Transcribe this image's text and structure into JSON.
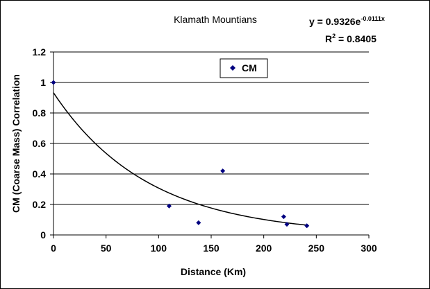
{
  "chart_data": {
    "type": "scatter",
    "title": "Klamath Mountians",
    "xlabel": "Distance (Km)",
    "ylabel": "CM (Coarse Mass) Correlation",
    "xlim": [
      0,
      300
    ],
    "ylim": [
      0,
      1.2
    ],
    "x_ticks": [
      0,
      50,
      100,
      150,
      200,
      250,
      300
    ],
    "y_ticks": [
      0,
      0.2,
      0.4,
      0.6,
      0.8,
      1,
      1.2
    ],
    "x_tick_labels": [
      "0",
      "50",
      "100",
      "150",
      "200",
      "250",
      "300"
    ],
    "y_tick_labels": [
      "0",
      "0.2",
      "0.4",
      "0.6",
      "0.8",
      "1",
      "1.2"
    ],
    "grid": "horizontal major gridlines",
    "legend_position": "top-center",
    "series": [
      {
        "name": "CM",
        "marker": "diamond",
        "color": "#000080",
        "x": [
          0,
          110,
          138,
          161,
          219,
          222,
          241
        ],
        "y": [
          1.0,
          0.19,
          0.08,
          0.42,
          0.12,
          0.07,
          0.06
        ]
      }
    ],
    "trendline": {
      "type": "exponential",
      "a": 0.9326,
      "b": -0.0111,
      "x_range": [
        0,
        241
      ],
      "color": "#000000"
    },
    "equation_text": {
      "base": "y = 0.9326e",
      "exponent": "-0.0111x"
    },
    "r2_text": {
      "base": "R",
      "superscript": "2",
      "value": " = 0.8405"
    }
  }
}
